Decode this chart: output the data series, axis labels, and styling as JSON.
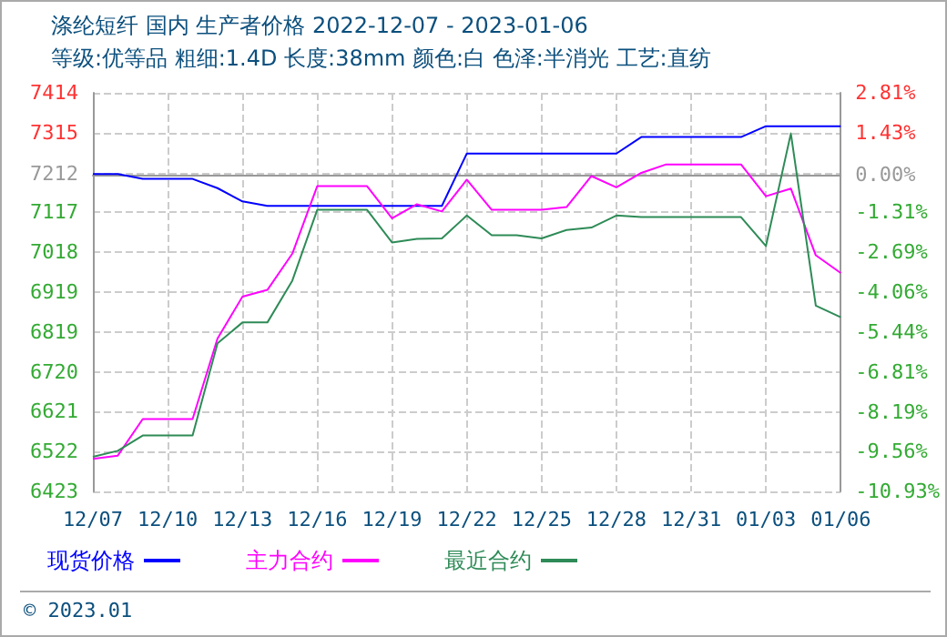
{
  "chart_data": {
    "type": "line",
    "title": "涤纶短纤 国内 生产者价格 2022-12-07 - 2023-01-06",
    "subtitle": "等级:优等品 粗细:1.4D 长度:38mm 颜色:白 色泽:半消光 工艺:直纺",
    "categories": [
      "12/07",
      null,
      null,
      "12/10",
      null,
      null,
      "12/13",
      null,
      null,
      "12/16",
      null,
      null,
      "12/19",
      null,
      null,
      "12/22",
      null,
      null,
      "12/25",
      null,
      null,
      "12/28",
      null,
      null,
      "12/31",
      null,
      null,
      "01/03",
      null,
      null,
      "01/06"
    ],
    "series": [
      {
        "name": "现货价格",
        "color": "#0000ff",
        "values": [
          7212,
          7212,
          7200,
          7200,
          7200,
          7177,
          7144,
          7133,
          7133,
          7133,
          7133,
          7133,
          7133,
          7133,
          7133,
          7263,
          7263,
          7263,
          7263,
          7263,
          7263,
          7263,
          7304,
          7304,
          7304,
          7304,
          7304,
          7331,
          7331,
          7331,
          7331
        ]
      },
      {
        "name": "主力合约",
        "color": "#ff00ff",
        "values": [
          6504,
          6512,
          6603,
          6603,
          6603,
          6803,
          6907,
          6924,
          7014,
          7182,
          7182,
          7182,
          7102,
          7137,
          7119,
          7198,
          7123,
          7123,
          7123,
          7130,
          7207,
          7179,
          7215,
          7236,
          7236,
          7236,
          7236,
          7157,
          7176,
          7010,
          6966
        ]
      },
      {
        "name": "最近合约",
        "color": "#2e8b57",
        "values": [
          6509,
          6524,
          6562,
          6562,
          6562,
          6791,
          6843,
          6843,
          6947,
          7123,
          7123,
          7123,
          7042,
          7051,
          7052,
          7109,
          7060,
          7060,
          7052,
          7073,
          7079,
          7109,
          7105,
          7105,
          7105,
          7105,
          7105,
          7033,
          7313,
          6885,
          6856
        ]
      }
    ],
    "ylim": [
      6423,
      7414
    ],
    "yticks": [
      6423,
      {
        "value": 6522.1,
        "label": "6522"
      },
      {
        "value": 6621.2,
        "label": "6621"
      },
      {
        "value": 6720.3,
        "label": "6720"
      },
      {
        "value": 6819.4,
        "label": "6819"
      },
      {
        "value": 6918.5,
        "label": "6919"
      },
      {
        "value": 7017.6,
        "label": "7018"
      },
      {
        "value": 7116.7,
        "label": "7117"
      },
      7212,
      {
        "value": 7314.9,
        "label": "7315"
      },
      7414
    ],
    "y2lim": [
      -10.93,
      2.81
    ],
    "y2ticks": [
      {
        "value": -10.93,
        "label": "-10.93%"
      },
      {
        "value": -9.556,
        "label": "-9.56%"
      },
      {
        "value": -8.19,
        "label": "-8.19%"
      },
      {
        "value": -6.808,
        "label": "-6.81%"
      },
      {
        "value": -5.44,
        "label": "-5.44%"
      },
      {
        "value": -4.06,
        "label": "-4.06%"
      },
      {
        "value": -2.686,
        "label": "-2.69%"
      },
      {
        "value": -1.312,
        "label": "-1.31%"
      },
      {
        "value": 0,
        "label": "0.00%"
      },
      {
        "value": 1.43,
        "label": "1.43%"
      },
      {
        "value": 2.81,
        "label": "2.81%"
      }
    ],
    "grid": true,
    "legend": "bottom",
    "marker": "none",
    "line_style": "solid",
    "annotations": [
      "© 2023.01"
    ]
  }
}
